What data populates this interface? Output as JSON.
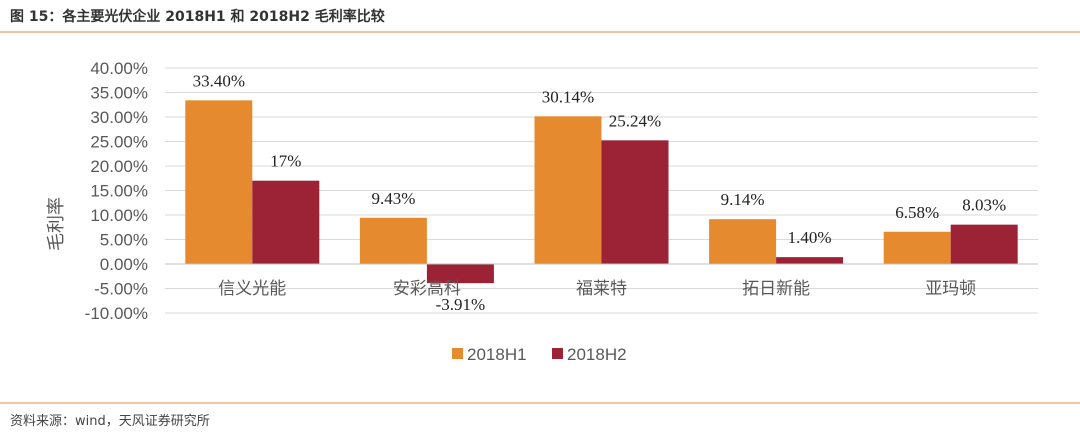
{
  "figure": {
    "title": "图 15：各主要光伏企业 2018H1 和 2018H2 毛利率比较",
    "source": "资料来源：wind，天风证券研究所"
  },
  "chart_data": {
    "type": "bar",
    "ylabel": "毛利率",
    "xlabel": "",
    "ylim": [
      -10,
      40
    ],
    "ytick_step": 5,
    "ytick_labels": [
      "40.00%",
      "35.00%",
      "30.00%",
      "25.00%",
      "20.00%",
      "15.00%",
      "10.00%",
      "5.00%",
      "0.00%",
      "-5.00%",
      "-10.00%"
    ],
    "grid": true,
    "legend_position": "bottom",
    "categories": [
      "信义光能",
      "安彩高科",
      "福莱特",
      "拓日新能",
      "亚玛顿"
    ],
    "series": [
      {
        "name": "2018H1",
        "color": "#e58a2e",
        "values": [
          33.4,
          9.43,
          30.14,
          9.14,
          6.58
        ],
        "labels": [
          "33.40%",
          "9.43%",
          "30.14%",
          "9.14%",
          "6.58%"
        ]
      },
      {
        "name": "2018H2",
        "color": "#9b2335",
        "values": [
          17.0,
          -3.91,
          25.24,
          1.4,
          8.03
        ],
        "labels": [
          "17%",
          "-3.91%",
          "25.24%",
          "1.40%",
          "8.03%"
        ]
      }
    ]
  }
}
